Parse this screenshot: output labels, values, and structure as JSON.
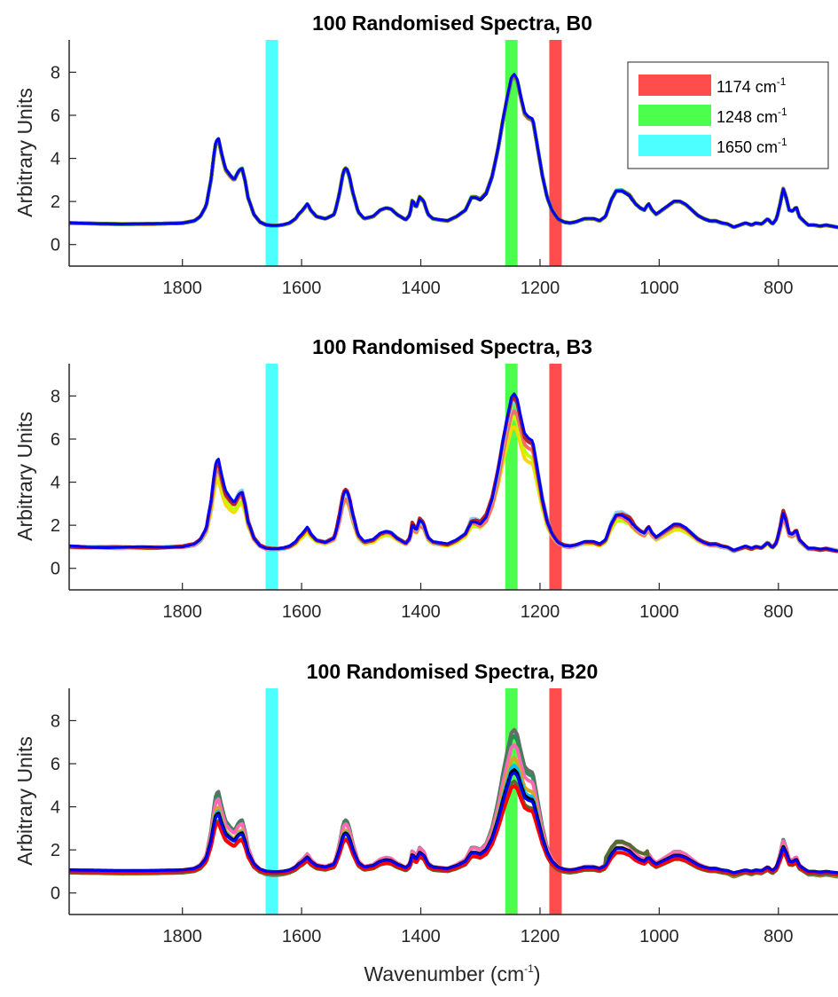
{
  "figure": {
    "xlabel": "Wavenumber",
    "xlabel_unit": "(cm",
    "xlabel_unit_exp": "-1",
    "xlabel_unit_close": ")"
  },
  "legend": [
    {
      "label": "1174 cm",
      "exp": "-1",
      "color": "#ff4d4d"
    },
    {
      "label": "1248 cm",
      "exp": "-1",
      "color": "#4dff4d"
    },
    {
      "label": "1650 cm",
      "exp": "-1",
      "color": "#4dffff"
    }
  ],
  "chart_data": [
    {
      "type": "line",
      "title": "100 Randomised Spectra, B0",
      "ylabel": "Arbitrary Units",
      "xlabel": "",
      "xlim": [
        1990,
        700
      ],
      "x_reversed": true,
      "ylim": [
        -1,
        9.5
      ],
      "xticks": [
        1800,
        1600,
        1400,
        1200,
        1000,
        800
      ],
      "yticks": [
        0,
        2,
        4,
        6,
        8
      ],
      "highlight_bands": [
        {
          "center": 1650,
          "color": "#4dffff"
        },
        {
          "center": 1248,
          "color": "#4dff4d"
        },
        {
          "center": 1174,
          "color": "#ff4d4d"
        }
      ],
      "spread": 0.05,
      "spectrum": {
        "x": [
          1990,
          1900,
          1850,
          1800,
          1780,
          1770,
          1760,
          1752,
          1745,
          1740,
          1735,
          1728,
          1720,
          1713,
          1706,
          1700,
          1695,
          1690,
          1680,
          1670,
          1660,
          1650,
          1640,
          1630,
          1620,
          1610,
          1605,
          1598,
          1590,
          1585,
          1575,
          1560,
          1545,
          1537,
          1530,
          1525,
          1520,
          1515,
          1505,
          1495,
          1480,
          1468,
          1458,
          1450,
          1440,
          1425,
          1418,
          1414,
          1408,
          1402,
          1395,
          1388,
          1380,
          1370,
          1355,
          1340,
          1325,
          1315,
          1308,
          1300,
          1290,
          1280,
          1270,
          1262,
          1255,
          1248,
          1243,
          1238,
          1232,
          1226,
          1220,
          1212,
          1204,
          1196,
          1188,
          1180,
          1170,
          1160,
          1150,
          1140,
          1125,
          1110,
          1100,
          1090,
          1080,
          1072,
          1062,
          1050,
          1040,
          1032,
          1025,
          1018,
          1012,
          1005,
          995,
          985,
          975,
          965,
          955,
          945,
          935,
          925,
          915,
          905,
          895,
          885,
          875,
          865,
          855,
          845,
          838,
          828,
          818,
          810,
          803,
          797,
          792,
          787,
          782,
          776,
          770,
          765,
          758,
          750,
          740,
          730,
          720,
          710,
          700
        ],
        "y": [
          1.0,
          0.95,
          0.96,
          1.0,
          1.1,
          1.3,
          1.8,
          3.0,
          4.6,
          4.95,
          4.3,
          3.5,
          3.2,
          3.0,
          3.4,
          3.55,
          3.0,
          2.2,
          1.4,
          1.05,
          0.92,
          0.88,
          0.88,
          0.92,
          1.0,
          1.2,
          1.4,
          1.6,
          1.9,
          1.6,
          1.3,
          1.2,
          1.4,
          2.3,
          3.4,
          3.55,
          3.2,
          2.5,
          1.5,
          1.2,
          1.3,
          1.6,
          1.7,
          1.65,
          1.4,
          1.15,
          1.4,
          2.1,
          1.7,
          2.2,
          2.0,
          1.4,
          1.2,
          1.15,
          1.1,
          1.3,
          1.6,
          2.2,
          2.2,
          2.1,
          2.4,
          3.2,
          4.5,
          5.8,
          6.8,
          7.7,
          7.85,
          7.6,
          6.8,
          6.1,
          5.9,
          5.8,
          4.5,
          3.2,
          2.2,
          1.6,
          1.2,
          1.05,
          1.0,
          1.05,
          1.2,
          1.2,
          1.1,
          1.3,
          2.1,
          2.5,
          2.5,
          2.3,
          1.9,
          1.7,
          1.6,
          1.9,
          1.6,
          1.4,
          1.6,
          1.8,
          2.0,
          2.0,
          1.85,
          1.6,
          1.35,
          1.2,
          1.1,
          1.1,
          1.0,
          0.95,
          0.8,
          0.9,
          1.0,
          0.9,
          1.0,
          0.95,
          1.2,
          0.95,
          1.2,
          1.9,
          2.6,
          2.2,
          1.6,
          1.55,
          1.75,
          1.3,
          1.1,
          0.9,
          0.9,
          0.85,
          0.9,
          0.85,
          0.8
        ]
      },
      "series": [
        {
          "name": "",
          "color": "#ff4d4d"
        },
        {
          "name": "",
          "color": "#3cb371"
        },
        {
          "name": "",
          "color": "#000000"
        },
        {
          "name": "",
          "color": "#00bfbf"
        },
        {
          "name": "",
          "color": "#808000"
        },
        {
          "name": "",
          "color": "#0000ff"
        }
      ]
    },
    {
      "type": "line",
      "title": "100 Randomised Spectra, B3",
      "ylabel": "Arbitrary Units",
      "xlabel": "",
      "xlim": [
        1990,
        700
      ],
      "x_reversed": true,
      "ylim": [
        -1,
        9.5
      ],
      "xticks": [
        1800,
        1600,
        1400,
        1200,
        1000,
        800
      ],
      "yticks": [
        0,
        2,
        4,
        6,
        8
      ],
      "highlight_bands": [
        {
          "center": 1650,
          "color": "#4dffff"
        },
        {
          "center": 1248,
          "color": "#4dff4d"
        },
        {
          "center": 1174,
          "color": "#ff4d4d"
        }
      ],
      "spread": 0.2,
      "spectrum": {
        "x": [
          1990,
          1900,
          1850,
          1800,
          1780,
          1770,
          1760,
          1752,
          1745,
          1740,
          1735,
          1728,
          1720,
          1713,
          1706,
          1700,
          1695,
          1690,
          1680,
          1670,
          1660,
          1650,
          1640,
          1630,
          1620,
          1610,
          1605,
          1598,
          1590,
          1585,
          1575,
          1560,
          1545,
          1537,
          1530,
          1525,
          1520,
          1515,
          1505,
          1495,
          1480,
          1468,
          1458,
          1450,
          1440,
          1425,
          1418,
          1414,
          1408,
          1402,
          1395,
          1388,
          1380,
          1370,
          1355,
          1340,
          1325,
          1315,
          1308,
          1300,
          1290,
          1280,
          1270,
          1262,
          1255,
          1248,
          1243,
          1238,
          1232,
          1226,
          1220,
          1212,
          1204,
          1196,
          1188,
          1180,
          1170,
          1160,
          1150,
          1140,
          1125,
          1110,
          1100,
          1090,
          1080,
          1072,
          1062,
          1050,
          1040,
          1032,
          1025,
          1018,
          1012,
          1005,
          995,
          985,
          975,
          965,
          955,
          945,
          935,
          925,
          915,
          905,
          895,
          885,
          875,
          865,
          855,
          845,
          838,
          828,
          818,
          810,
          803,
          797,
          792,
          787,
          782,
          776,
          770,
          765,
          758,
          750,
          740,
          730,
          720,
          710,
          700
        ],
        "y": [
          1.0,
          0.95,
          0.96,
          1.0,
          1.1,
          1.3,
          1.8,
          3.0,
          4.6,
          4.95,
          4.3,
          3.5,
          3.2,
          3.0,
          3.4,
          3.55,
          3.0,
          2.2,
          1.4,
          1.05,
          0.92,
          0.88,
          0.88,
          0.92,
          1.0,
          1.2,
          1.4,
          1.6,
          1.9,
          1.6,
          1.3,
          1.2,
          1.4,
          2.3,
          3.4,
          3.55,
          3.2,
          2.5,
          1.5,
          1.2,
          1.3,
          1.6,
          1.7,
          1.65,
          1.4,
          1.15,
          1.4,
          2.1,
          1.7,
          2.2,
          2.0,
          1.4,
          1.2,
          1.15,
          1.1,
          1.3,
          1.6,
          2.2,
          2.2,
          2.1,
          2.4,
          3.2,
          4.5,
          5.8,
          6.8,
          7.7,
          7.85,
          7.6,
          6.8,
          6.1,
          5.9,
          5.8,
          4.5,
          3.2,
          2.2,
          1.6,
          1.2,
          1.05,
          1.0,
          1.05,
          1.2,
          1.2,
          1.1,
          1.3,
          2.1,
          2.5,
          2.5,
          2.3,
          1.9,
          1.7,
          1.6,
          1.9,
          1.6,
          1.4,
          1.6,
          1.8,
          2.0,
          2.0,
          1.85,
          1.6,
          1.35,
          1.2,
          1.1,
          1.1,
          1.0,
          0.95,
          0.8,
          0.9,
          1.0,
          0.9,
          1.0,
          0.95,
          1.2,
          0.95,
          1.2,
          1.9,
          2.6,
          2.2,
          1.6,
          1.55,
          1.75,
          1.3,
          1.1,
          0.9,
          0.9,
          0.85,
          0.9,
          0.85,
          0.8
        ]
      },
      "series": [
        {
          "name": "",
          "color": "#ffd700"
        },
        {
          "name": "",
          "color": "#c0ff00"
        },
        {
          "name": "",
          "color": "#ff6b6b"
        },
        {
          "name": "",
          "color": "#87ceeb"
        },
        {
          "name": "",
          "color": "#b22222"
        },
        {
          "name": "",
          "color": "#0000ff"
        }
      ]
    },
    {
      "type": "line",
      "title": "100 Randomised Spectra, B20",
      "ylabel": "Arbitrary Units",
      "xlabel": "Wavenumber (cm-1)",
      "xlim": [
        1990,
        700
      ],
      "x_reversed": true,
      "ylim": [
        -1,
        9.5
      ],
      "xticks": [
        1800,
        1600,
        1400,
        1200,
        1000,
        800
      ],
      "yticks": [
        0,
        2,
        4,
        6,
        8
      ],
      "highlight_bands": [
        {
          "center": 1650,
          "color": "#4dffff"
        },
        {
          "center": 1248,
          "color": "#4dff4d"
        },
        {
          "center": 1174,
          "color": "#ff4d4d"
        }
      ],
      "spectrum": {
        "x": [
          1990,
          1900,
          1850,
          1800,
          1780,
          1770,
          1760,
          1752,
          1745,
          1740,
          1735,
          1728,
          1720,
          1713,
          1706,
          1700,
          1695,
          1690,
          1680,
          1670,
          1660,
          1650,
          1640,
          1630,
          1620,
          1610,
          1605,
          1598,
          1590,
          1585,
          1575,
          1560,
          1545,
          1537,
          1530,
          1525,
          1520,
          1515,
          1505,
          1495,
          1480,
          1468,
          1458,
          1450,
          1440,
          1425,
          1418,
          1414,
          1408,
          1402,
          1395,
          1388,
          1380,
          1370,
          1355,
          1340,
          1325,
          1315,
          1308,
          1300,
          1290,
          1280,
          1270,
          1262,
          1255,
          1248,
          1243,
          1238,
          1232,
          1226,
          1220,
          1212,
          1204,
          1196,
          1188,
          1180,
          1170,
          1160,
          1150,
          1140,
          1125,
          1110,
          1100,
          1090,
          1080,
          1072,
          1062,
          1050,
          1040,
          1032,
          1025,
          1018,
          1012,
          1005,
          995,
          985,
          975,
          965,
          955,
          945,
          935,
          925,
          915,
          905,
          895,
          885,
          875,
          865,
          855,
          845,
          838,
          828,
          818,
          810,
          803,
          797,
          792,
          787,
          782,
          776,
          770,
          765,
          758,
          750,
          740,
          730,
          720,
          710,
          700
        ],
        "y": [
          1.0,
          0.95,
          0.96,
          1.0,
          1.1,
          1.3,
          1.8,
          3.0,
          4.6,
          4.95,
          4.3,
          3.5,
          3.2,
          3.0,
          3.4,
          3.55,
          3.0,
          2.2,
          1.4,
          1.05,
          0.92,
          0.88,
          0.88,
          0.92,
          1.0,
          1.2,
          1.4,
          1.6,
          1.9,
          1.6,
          1.3,
          1.2,
          1.4,
          2.3,
          3.4,
          3.55,
          3.2,
          2.5,
          1.5,
          1.2,
          1.3,
          1.6,
          1.7,
          1.65,
          1.4,
          1.15,
          1.4,
          2.1,
          1.7,
          2.2,
          2.0,
          1.4,
          1.2,
          1.15,
          1.1,
          1.3,
          1.6,
          2.2,
          2.2,
          2.1,
          2.4,
          3.2,
          4.5,
          5.8,
          6.8,
          7.7,
          7.85,
          7.6,
          6.8,
          6.1,
          5.9,
          5.8,
          4.5,
          3.2,
          2.2,
          1.6,
          1.2,
          1.05,
          1.0,
          1.05,
          1.2,
          1.2,
          1.1,
          1.3,
          2.1,
          2.5,
          2.5,
          2.3,
          1.9,
          1.7,
          1.6,
          1.9,
          1.6,
          1.4,
          1.6,
          1.8,
          2.0,
          2.0,
          1.85,
          1.6,
          1.35,
          1.2,
          1.1,
          1.1,
          1.0,
          0.95,
          0.8,
          0.9,
          1.0,
          0.9,
          1.0,
          0.95,
          1.2,
          0.95,
          1.2,
          1.9,
          2.6,
          2.2,
          1.6,
          1.55,
          1.75,
          1.3,
          1.1,
          0.9,
          0.9,
          0.85,
          0.9,
          0.85,
          0.8
        ]
      },
      "series": [
        {
          "name": "",
          "color": "#696969",
          "scale": 0.97
        },
        {
          "name": "",
          "color": "#2e8b57",
          "scale": 0.92
        },
        {
          "name": "",
          "color": "#ff69b4",
          "scale": 0.85
        },
        {
          "name": "",
          "color": "#daa520",
          "scale": 0.78
        },
        {
          "name": "",
          "color": "#00bfff",
          "scale": 0.72
        },
        {
          "name": "",
          "color": "#000000",
          "scale": 0.68
        },
        {
          "name": "",
          "color": "#556b2f",
          "scale": 0.62
        },
        {
          "name": "",
          "color": "#ff0000",
          "scale": 0.58
        },
        {
          "name": "",
          "color": "#0000ff",
          "scale": 0.66
        }
      ]
    }
  ]
}
